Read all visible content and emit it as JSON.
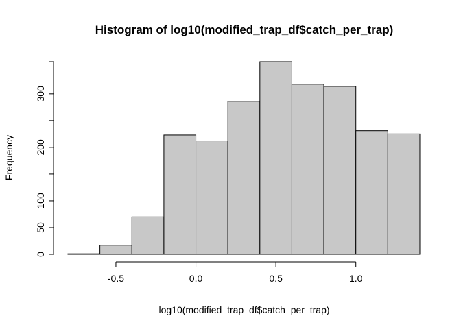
{
  "chart_data": {
    "type": "bar",
    "title": "Histogram of log10(modified_trap_df$catch_per_trap)",
    "xlabel": "log10(modified_trap_df$catch_per_trap)",
    "ylabel": "Frequency",
    "bin_edges": [
      -0.8,
      -0.6,
      -0.4,
      -0.2,
      0.0,
      0.2,
      0.4,
      0.6,
      0.8,
      1.0,
      1.2,
      1.4
    ],
    "values": [
      1,
      17,
      70,
      223,
      212,
      286,
      360,
      318,
      314,
      231,
      225
    ],
    "xlim": [
      -0.8,
      1.4
    ],
    "ylim": [
      0,
      360
    ],
    "x_ticks": [
      -0.5,
      0.0,
      0.5,
      1.0
    ],
    "x_tick_labels": [
      "-0.5",
      "0.0",
      "0.5",
      "1.0"
    ],
    "y_ticks": [
      0,
      50,
      100,
      200,
      300
    ],
    "y_tick_labels": [
      "0",
      "50",
      "100",
      "200",
      "300"
    ],
    "grid": false,
    "colors": {
      "bar_fill": "#c8c8c8",
      "bar_stroke": "#000000"
    }
  }
}
